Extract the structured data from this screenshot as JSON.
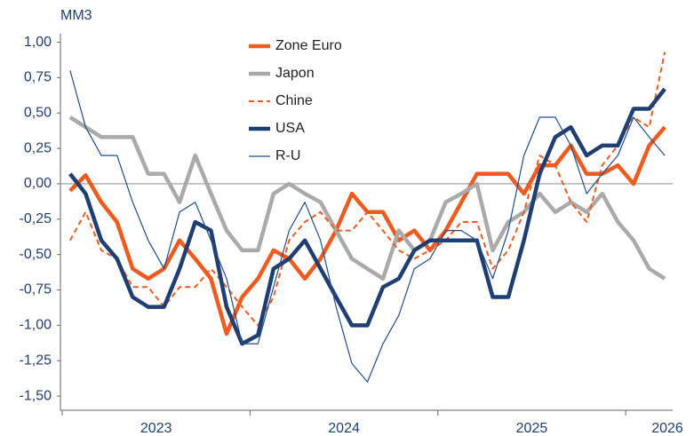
{
  "chart_data": {
    "type": "line",
    "y_unit": "MM3",
    "x": [
      2023.042,
      2023.125,
      2023.208,
      2023.292,
      2023.375,
      2023.458,
      2023.542,
      2023.625,
      2023.708,
      2023.792,
      2023.875,
      2023.958,
      2024.042,
      2024.125,
      2024.208,
      2024.292,
      2024.375,
      2024.458,
      2024.542,
      2024.625,
      2024.708,
      2024.792,
      2024.875,
      2024.958,
      2025.042,
      2025.125,
      2025.208,
      2025.292,
      2025.375,
      2025.458,
      2025.542,
      2025.625,
      2025.708,
      2025.792,
      2025.875,
      2025.958,
      2026.042,
      2026.125,
      2026.208
    ],
    "xlim": [
      2023,
      2026.25
    ],
    "xticks": [
      2023,
      2024,
      2025,
      2026
    ],
    "ylim": [
      -1.6,
      1.06
    ],
    "yticks": [
      {
        "value": 1,
        "label": "1,00"
      },
      {
        "value": 0.75,
        "label": "0,75"
      },
      {
        "value": 0.5,
        "label": "0,50"
      },
      {
        "value": 0.25,
        "label": "0,25"
      },
      {
        "value": 0,
        "label": "0,00"
      },
      {
        "value": -0.25,
        "label": "-0,25"
      },
      {
        "value": -0.5,
        "label": "-0,50"
      },
      {
        "value": -0.75,
        "label": "-0,75"
      },
      {
        "value": -1,
        "label": "-1,00"
      },
      {
        "value": -1.25,
        "label": "-1,25"
      },
      {
        "value": -1.5,
        "label": "-1,50"
      }
    ],
    "grid": false,
    "legend": "top",
    "series": [
      {
        "name": "Zone Euro",
        "color": "#f05a1e",
        "values": [
          -0.05,
          0.06,
          -0.13,
          -0.27,
          -0.6,
          -0.67,
          -0.6,
          -0.4,
          -0.53,
          -0.67,
          -1.06,
          -0.8,
          -0.67,
          -0.47,
          -0.53,
          -0.67,
          -0.53,
          -0.33,
          -0.07,
          -0.2,
          -0.2,
          -0.4,
          -0.33,
          -0.47,
          -0.33,
          -0.13,
          0.07,
          0.07,
          0.07,
          -0.07,
          0.13,
          0.13,
          0.27,
          0.07,
          0.07,
          0.13,
          0,
          0.27,
          0.4
        ]
      },
      {
        "name": "Japon",
        "color": "#aaaaaa",
        "values": [
          0.47,
          0.4,
          0.33,
          0.33,
          0.33,
          0.07,
          0.07,
          -0.13,
          0.2,
          -0.07,
          -0.33,
          -0.47,
          -0.47,
          -0.07,
          0,
          -0.07,
          -0.13,
          -0.33,
          -0.53,
          -0.6,
          -0.67,
          -0.33,
          -0.47,
          -0.4,
          -0.13,
          -0.07,
          0,
          -0.47,
          -0.27,
          -0.2,
          -0.07,
          -0.2,
          -0.13,
          -0.2,
          -0.07,
          -0.27,
          -0.4,
          -0.6,
          -0.67
        ]
      },
      {
        "name": "Chine",
        "color": "#f05a1e",
        "dashed": true,
        "values": [
          -0.4,
          -0.2,
          -0.47,
          -0.53,
          -0.73,
          -0.73,
          -0.87,
          -0.73,
          -0.73,
          -0.6,
          -0.73,
          -0.87,
          -1,
          -0.8,
          -0.4,
          -0.27,
          -0.2,
          -0.33,
          -0.33,
          -0.2,
          -0.33,
          -0.47,
          -0.53,
          -0.47,
          -0.4,
          -0.27,
          -0.27,
          -0.6,
          -0.47,
          -0.2,
          0.2,
          0.13,
          -0.13,
          -0.27,
          0.13,
          0.27,
          0.47,
          0.4,
          0.93
        ]
      },
      {
        "name": "USA",
        "color": "#1f3f73",
        "values": [
          0.07,
          -0.07,
          -0.4,
          -0.53,
          -0.8,
          -0.87,
          -0.87,
          -0.6,
          -0.27,
          -0.33,
          -0.87,
          -1.13,
          -1.07,
          -0.6,
          -0.53,
          -0.4,
          -0.6,
          -0.8,
          -1,
          -1,
          -0.73,
          -0.67,
          -0.47,
          -0.4,
          -0.4,
          -0.4,
          -0.4,
          -0.8,
          -0.8,
          -0.4,
          0.07,
          0.33,
          0.4,
          0.2,
          0.27,
          0.27,
          0.53,
          0.53,
          0.67
        ]
      },
      {
        "name": "R-U",
        "color": "#1f4e8c",
        "values": [
          0.8,
          0.4,
          0.2,
          0.2,
          -0.13,
          -0.4,
          -0.6,
          -0.2,
          -0.13,
          -0.4,
          -0.67,
          -1.13,
          -1.13,
          -0.73,
          -0.33,
          -0.13,
          -0.4,
          -0.87,
          -1.27,
          -1.4,
          -1.13,
          -0.93,
          -0.6,
          -0.53,
          -0.33,
          -0.33,
          -0.4,
          -0.67,
          -0.33,
          0.2,
          0.47,
          0.47,
          0.27,
          -0.07,
          0.07,
          0.2,
          0.47,
          0.33,
          0.2
        ]
      }
    ]
  }
}
